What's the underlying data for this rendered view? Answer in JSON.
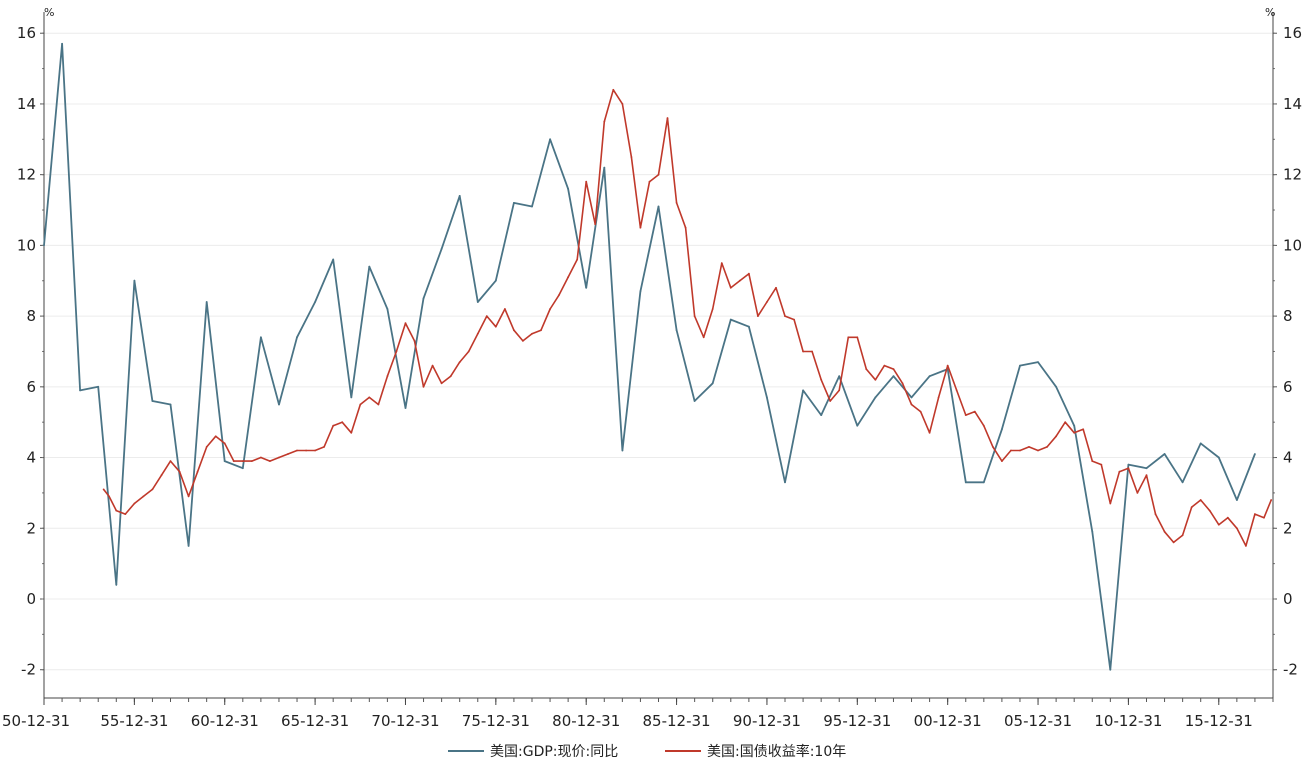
{
  "chart_data": {
    "type": "line",
    "title": "",
    "xlabel": "",
    "ylabel": "%",
    "ylabel_right": "%",
    "ylim": [
      -2.8,
      16.6
    ],
    "xlim": [
      1950.0,
      2018.0
    ],
    "y_ticks": [
      "-2",
      "0",
      "2",
      "4",
      "6",
      "8",
      "10",
      "12",
      "14",
      "16"
    ],
    "x_tick_labels": [
      "50-12-31",
      "55-12-31",
      "60-12-31",
      "65-12-31",
      "70-12-31",
      "75-12-31",
      "80-12-31",
      "85-12-31",
      "90-12-31",
      "95-12-31",
      "00-12-31",
      "05-12-31",
      "10-12-31",
      "15-12-31"
    ],
    "grid": true,
    "legend_position": "bottom",
    "series": [
      {
        "name": "美国:GDP:现价:同比",
        "color": "#4a7486",
        "x": [
          1950,
          1951,
          1952,
          1953,
          1954,
          1955,
          1956,
          1957,
          1958,
          1959,
          1960,
          1961,
          1962,
          1963,
          1964,
          1965,
          1966,
          1967,
          1968,
          1969,
          1970,
          1971,
          1972,
          1973,
          1974,
          1975,
          1976,
          1977,
          1978,
          1979,
          1980,
          1981,
          1982,
          1983,
          1984,
          1985,
          1986,
          1987,
          1988,
          1989,
          1990,
          1991,
          1992,
          1993,
          1994,
          1995,
          1996,
          1997,
          1998,
          1999,
          2000,
          2001,
          2002,
          2003,
          2004,
          2005,
          2006,
          2007,
          2008,
          2009,
          2010,
          2011,
          2012,
          2013,
          2014,
          2015,
          2016,
          2017
        ],
        "values": [
          10.0,
          15.7,
          5.9,
          6.0,
          0.4,
          9.0,
          5.6,
          5.5,
          1.5,
          8.4,
          3.9,
          3.7,
          7.4,
          5.5,
          7.4,
          8.4,
          9.6,
          5.7,
          9.4,
          8.2,
          5.4,
          8.5,
          9.9,
          11.4,
          8.4,
          9.0,
          11.2,
          11.1,
          13.0,
          11.6,
          8.8,
          12.2,
          4.2,
          8.7,
          11.1,
          7.6,
          5.6,
          6.1,
          7.9,
          7.7,
          5.7,
          3.3,
          5.9,
          5.2,
          6.3,
          4.9,
          5.7,
          6.3,
          5.7,
          6.3,
          6.5,
          3.3,
          3.3,
          4.8,
          6.6,
          6.7,
          6.0,
          4.9,
          1.9,
          -2.0,
          3.8,
          3.7,
          4.1,
          3.3,
          4.4,
          4.0,
          2.8,
          4.1
        ]
      },
      {
        "name": "美国:国债收益率:10年",
        "color": "#c0392b",
        "x": [
          1953.3,
          1953.6,
          1954.0,
          1954.5,
          1955.0,
          1955.5,
          1956.0,
          1956.5,
          1957.0,
          1957.5,
          1958.0,
          1958.5,
          1959.0,
          1959.5,
          1960.0,
          1960.5,
          1961.0,
          1961.5,
          1962.0,
          1962.5,
          1963.0,
          1963.5,
          1964.0,
          1964.5,
          1965.0,
          1965.5,
          1966.0,
          1966.5,
          1967.0,
          1967.5,
          1968.0,
          1968.5,
          1969.0,
          1969.5,
          1970.0,
          1970.5,
          1971.0,
          1971.5,
          1972.0,
          1972.5,
          1973.0,
          1973.5,
          1974.0,
          1974.5,
          1975.0,
          1975.5,
          1976.0,
          1976.5,
          1977.0,
          1977.5,
          1978.0,
          1978.5,
          1979.0,
          1979.5,
          1980.0,
          1980.5,
          1981.0,
          1981.5,
          1982.0,
          1982.5,
          1983.0,
          1983.5,
          1984.0,
          1984.5,
          1985.0,
          1985.5,
          1986.0,
          1986.5,
          1987.0,
          1987.5,
          1988.0,
          1988.5,
          1989.0,
          1989.5,
          1990.0,
          1990.5,
          1991.0,
          1991.5,
          1992.0,
          1992.5,
          1993.0,
          1993.5,
          1994.0,
          1994.5,
          1995.0,
          1995.5,
          1996.0,
          1996.5,
          1997.0,
          1997.5,
          1998.0,
          1998.5,
          1999.0,
          1999.5,
          2000.0,
          2000.5,
          2001.0,
          2001.5,
          2002.0,
          2002.5,
          2003.0,
          2003.5,
          2004.0,
          2004.5,
          2005.0,
          2005.5,
          2006.0,
          2006.5,
          2007.0,
          2007.5,
          2008.0,
          2008.5,
          2009.0,
          2009.5,
          2010.0,
          2010.5,
          2011.0,
          2011.5,
          2012.0,
          2012.5,
          2013.0,
          2013.5,
          2014.0,
          2014.5,
          2015.0,
          2015.5,
          2016.0,
          2016.5,
          2017.0,
          2017.5,
          2017.9
        ],
        "values": [
          3.1,
          2.9,
          2.5,
          2.4,
          2.7,
          2.9,
          3.1,
          3.5,
          3.9,
          3.6,
          2.9,
          3.6,
          4.3,
          4.6,
          4.4,
          3.9,
          3.9,
          3.9,
          4.0,
          3.9,
          4.0,
          4.1,
          4.2,
          4.2,
          4.2,
          4.3,
          4.9,
          5.0,
          4.7,
          5.5,
          5.7,
          5.5,
          6.3,
          7.0,
          7.8,
          7.3,
          6.0,
          6.6,
          6.1,
          6.3,
          6.7,
          7.0,
          7.5,
          8.0,
          7.7,
          8.2,
          7.6,
          7.3,
          7.5,
          7.6,
          8.2,
          8.6,
          9.1,
          9.6,
          11.8,
          10.6,
          13.5,
          14.4,
          14.0,
          12.5,
          10.5,
          11.8,
          12.0,
          13.6,
          11.2,
          10.5,
          8.0,
          7.4,
          8.2,
          9.5,
          8.8,
          9.0,
          9.2,
          8.0,
          8.4,
          8.8,
          8.0,
          7.9,
          7.0,
          7.0,
          6.2,
          5.6,
          5.9,
          7.4,
          7.4,
          6.5,
          6.2,
          6.6,
          6.5,
          6.1,
          5.5,
          5.3,
          4.7,
          5.7,
          6.6,
          5.9,
          5.2,
          5.3,
          4.9,
          4.3,
          3.9,
          4.2,
          4.2,
          4.3,
          4.2,
          4.3,
          4.6,
          5.0,
          4.7,
          4.8,
          3.9,
          3.8,
          2.7,
          3.6,
          3.7,
          3.0,
          3.5,
          2.4,
          1.9,
          1.6,
          1.8,
          2.6,
          2.8,
          2.5,
          2.1,
          2.3,
          2.0,
          1.5,
          2.4,
          2.3,
          2.8
        ]
      }
    ]
  }
}
